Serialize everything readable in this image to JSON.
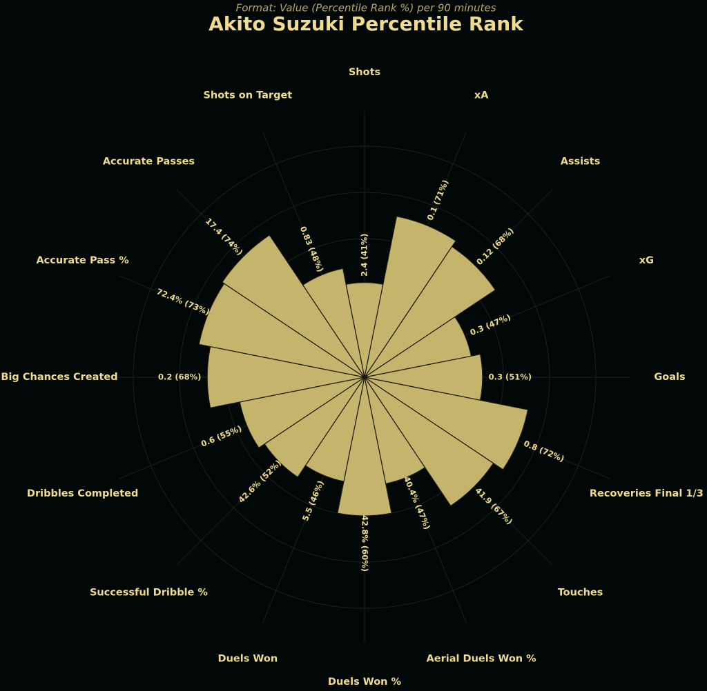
{
  "chart_data": {
    "type": "polar_bar",
    "title": "Akito Suzuki Percentile Rank",
    "subtitle": "Format: Value (Percentile Rank %) per 90 minutes",
    "categories": [
      "Goals",
      "Recoveries Final 1/3",
      "Touches",
      "Aerial Duels Won %",
      "Duels Won %",
      "Duels Won",
      "Successful Dribble %",
      "Dribbles Completed",
      "Big Chances Created",
      "Accurate Pass %",
      "Accurate Passes",
      "Shots on Target",
      "Shots",
      "xA",
      "Assists",
      "xG"
    ],
    "values": [
      51,
      72,
      67,
      47,
      60,
      46,
      52,
      55,
      68,
      73,
      74,
      48,
      41,
      71,
      68,
      47
    ],
    "value_labels": [
      "0.3 (51%)",
      "0.8 (72%)",
      "41.9 (67%)",
      "40.4% (47%)",
      "42.8% (60%)",
      "5.5 (46%)",
      "42.6% (52%)",
      "0.6 (55%)",
      "0.2 (68%)",
      "72.4% (73%)",
      "17.4 (74%)",
      "0.83 (48%)",
      "2.4 (41%)",
      "0.1 (71%)",
      "0.12 (68%)",
      "0.3 (47%)"
    ],
    "color": "#c4b46c",
    "rlim": [
      0,
      100
    ],
    "rticks": [
      20,
      40,
      60,
      80,
      100
    ]
  }
}
